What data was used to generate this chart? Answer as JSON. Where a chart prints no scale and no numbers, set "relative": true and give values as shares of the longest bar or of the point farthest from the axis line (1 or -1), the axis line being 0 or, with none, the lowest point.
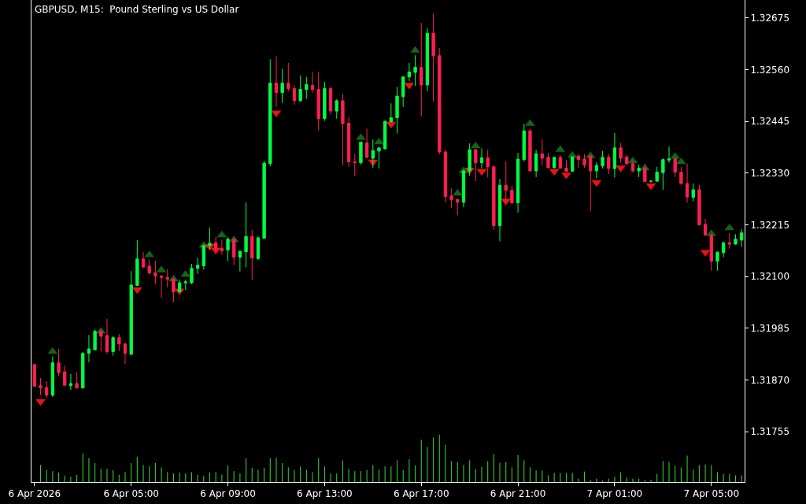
{
  "chart_data": [
    {
      "type": "candlestick",
      "title": "GBPUSD, M15:  Pound Sterling vs US Dollar",
      "categories": [
        "6 Apr 2026",
        null,
        null,
        null,
        null,
        null,
        null,
        null,
        null,
        null,
        null,
        null,
        null,
        null,
        null,
        null,
        "6 Apr 05:00",
        null,
        null,
        null,
        null,
        null,
        null,
        null,
        null,
        null,
        null,
        null,
        null,
        null,
        null,
        null,
        "6 Apr 09:00",
        null,
        null,
        null,
        null,
        null,
        null,
        null,
        null,
        null,
        null,
        null,
        null,
        null,
        null,
        null,
        "6 Apr 13:00",
        null,
        null,
        null,
        null,
        null,
        null,
        null,
        null,
        null,
        null,
        null,
        null,
        null,
        null,
        null,
        "6 Apr 17:00",
        null,
        null,
        null,
        null,
        null,
        null,
        null,
        null,
        null,
        null,
        null,
        null,
        null,
        null,
        null,
        "6 Apr 21:00",
        null,
        null,
        null,
        null,
        null,
        null,
        null,
        null,
        null,
        null,
        null,
        null,
        null,
        null,
        null,
        "7 Apr 01:00",
        null,
        null,
        null,
        null,
        null,
        null,
        null,
        null,
        null,
        null,
        null,
        null,
        null,
        null,
        null,
        "7 Apr 05:00",
        null,
        null,
        null,
        null,
        null
      ],
      "ohlc": [
        [
          1.31904,
          1.31906,
          1.31855,
          1.31856
        ],
        [
          1.31857,
          1.31874,
          1.31836,
          1.31852
        ],
        [
          1.31853,
          1.31867,
          1.31831,
          1.31836
        ],
        [
          1.31836,
          1.31922,
          1.31832,
          1.31908
        ],
        [
          1.31908,
          1.31939,
          1.31878,
          1.31886
        ],
        [
          1.31888,
          1.31902,
          1.31857,
          1.31858
        ],
        [
          1.31857,
          1.31883,
          1.31848,
          1.31862
        ],
        [
          1.31862,
          1.31888,
          1.31851,
          1.31852
        ],
        [
          1.31852,
          1.31932,
          1.31851,
          1.31929
        ],
        [
          1.31929,
          1.3197,
          1.31909,
          1.31939
        ],
        [
          1.31937,
          1.31982,
          1.31936,
          1.31978
        ],
        [
          1.31978,
          1.31979,
          1.31933,
          1.31967
        ],
        [
          1.31969,
          1.32006,
          1.31928,
          1.31933
        ],
        [
          1.31933,
          1.31967,
          1.31924,
          1.31964
        ],
        [
          1.31964,
          1.31972,
          1.31934,
          1.3195
        ],
        [
          1.3195,
          1.31953,
          1.31905,
          1.31929
        ],
        [
          1.31927,
          1.32112,
          1.31925,
          1.32081
        ],
        [
          1.3208,
          1.32181,
          1.32079,
          1.32139
        ],
        [
          1.32139,
          1.32154,
          1.32119,
          1.32121
        ],
        [
          1.32123,
          1.32138,
          1.32104,
          1.32108
        ],
        [
          1.32108,
          1.32135,
          1.32083,
          1.32101
        ],
        [
          1.32101,
          1.32103,
          1.32052,
          1.32098
        ],
        [
          1.32098,
          1.32116,
          1.32076,
          1.32094
        ],
        [
          1.32094,
          1.32096,
          1.32043,
          1.32066
        ],
        [
          1.32066,
          1.32093,
          1.32065,
          1.32086
        ],
        [
          1.32086,
          1.32093,
          1.3207,
          1.32088
        ],
        [
          1.32086,
          1.32128,
          1.32083,
          1.32118
        ],
        [
          1.32118,
          1.32142,
          1.32106,
          1.32125
        ],
        [
          1.32124,
          1.3217,
          1.32115,
          1.32169
        ],
        [
          1.32169,
          1.32209,
          1.32161,
          1.32174
        ],
        [
          1.32175,
          1.32188,
          1.3216,
          1.32161
        ],
        [
          1.32163,
          1.32182,
          1.32149,
          1.32157
        ],
        [
          1.32159,
          1.32188,
          1.32134,
          1.32183
        ],
        [
          1.32183,
          1.32184,
          1.32125,
          1.32143
        ],
        [
          1.32143,
          1.32158,
          1.32111,
          1.32156
        ],
        [
          1.32155,
          1.32265,
          1.32121,
          1.32189
        ],
        [
          1.32189,
          1.32204,
          1.32092,
          1.32141
        ],
        [
          1.3214,
          1.3219,
          1.32137,
          1.32186
        ],
        [
          1.32185,
          1.32357,
          1.32184,
          1.32352
        ],
        [
          1.32351,
          1.32583,
          1.32345,
          1.3253
        ],
        [
          1.3253,
          1.3259,
          1.32477,
          1.32509
        ],
        [
          1.32509,
          1.32562,
          1.32486,
          1.3253
        ],
        [
          1.3253,
          1.32575,
          1.32512,
          1.32518
        ],
        [
          1.32518,
          1.32525,
          1.32482,
          1.32491
        ],
        [
          1.32491,
          1.32547,
          1.32489,
          1.32516
        ],
        [
          1.32516,
          1.32544,
          1.32495,
          1.32527
        ],
        [
          1.32525,
          1.32555,
          1.32509,
          1.32516
        ],
        [
          1.32516,
          1.32555,
          1.32425,
          1.32451
        ],
        [
          1.32451,
          1.32533,
          1.32446,
          1.32518
        ],
        [
          1.32518,
          1.32523,
          1.3246,
          1.32468
        ],
        [
          1.32468,
          1.32494,
          1.32451,
          1.32491
        ],
        [
          1.32491,
          1.32506,
          1.32348,
          1.3244
        ],
        [
          1.32441,
          1.32455,
          1.32344,
          1.32355
        ],
        [
          1.32355,
          1.32373,
          1.32324,
          1.32353
        ],
        [
          1.32353,
          1.324,
          1.32349,
          1.32399
        ],
        [
          1.32397,
          1.32429,
          1.32363,
          1.32365
        ],
        [
          1.32363,
          1.32405,
          1.32341,
          1.3238
        ],
        [
          1.32379,
          1.32388,
          1.3234,
          1.32386
        ],
        [
          1.32384,
          1.32448,
          1.32382,
          1.32445
        ],
        [
          1.32444,
          1.32485,
          1.32443,
          1.32453
        ],
        [
          1.32453,
          1.32522,
          1.32418,
          1.32501
        ],
        [
          1.325,
          1.32544,
          1.32477,
          1.32544
        ],
        [
          1.32544,
          1.32575,
          1.32535,
          1.32555
        ],
        [
          1.32554,
          1.32592,
          1.32524,
          1.32565
        ],
        [
          1.32565,
          1.32664,
          1.32456,
          1.32526
        ],
        [
          1.32526,
          1.32652,
          1.32512,
          1.32641
        ],
        [
          1.32641,
          1.32685,
          1.32489,
          1.32591
        ],
        [
          1.32591,
          1.32608,
          1.32372,
          1.32377
        ],
        [
          1.32377,
          1.32382,
          1.32265,
          1.32278
        ],
        [
          1.32279,
          1.32296,
          1.32253,
          1.32271
        ],
        [
          1.32271,
          1.32274,
          1.32236,
          1.32265
        ],
        [
          1.32265,
          1.32337,
          1.32254,
          1.32335
        ],
        [
          1.32335,
          1.32396,
          1.32324,
          1.32382
        ],
        [
          1.32382,
          1.32384,
          1.32312,
          1.32353
        ],
        [
          1.32353,
          1.32385,
          1.3234,
          1.32364
        ],
        [
          1.32364,
          1.32382,
          1.3232,
          1.32344
        ],
        [
          1.32344,
          1.32347,
          1.32204,
          1.32213
        ],
        [
          1.32213,
          1.32317,
          1.32178,
          1.32303
        ],
        [
          1.32303,
          1.32356,
          1.32265,
          1.32292
        ],
        [
          1.32292,
          1.32302,
          1.32261,
          1.32264
        ],
        [
          1.32264,
          1.32375,
          1.32242,
          1.32361
        ],
        [
          1.3236,
          1.3244,
          1.32356,
          1.32424
        ],
        [
          1.32424,
          1.32429,
          1.32334,
          1.32335
        ],
        [
          1.32335,
          1.32382,
          1.32321,
          1.32373
        ],
        [
          1.32373,
          1.32405,
          1.32347,
          1.32363
        ],
        [
          1.32365,
          1.32375,
          1.32341,
          1.32342
        ],
        [
          1.32342,
          1.32366,
          1.3234,
          1.32365
        ],
        [
          1.32365,
          1.3237,
          1.3234,
          1.32341
        ],
        [
          1.32341,
          1.32359,
          1.32332,
          1.32334
        ],
        [
          1.32334,
          1.32367,
          1.32333,
          1.32366
        ],
        [
          1.32368,
          1.32372,
          1.32342,
          1.3236
        ],
        [
          1.32361,
          1.32372,
          1.32342,
          1.32348
        ],
        [
          1.32368,
          1.32369,
          1.32245,
          1.32335
        ],
        [
          1.32335,
          1.32354,
          1.32319,
          1.32347
        ],
        [
          1.32346,
          1.32379,
          1.3234,
          1.32365
        ],
        [
          1.32365,
          1.32373,
          1.32328,
          1.3234
        ],
        [
          1.3234,
          1.32419,
          1.3232,
          1.32386
        ],
        [
          1.32386,
          1.32397,
          1.32353,
          1.32363
        ],
        [
          1.32366,
          1.3237,
          1.32347,
          1.32351
        ],
        [
          1.32351,
          1.32357,
          1.32331,
          1.32335
        ],
        [
          1.32335,
          1.32349,
          1.32321,
          1.32341
        ],
        [
          1.32341,
          1.3235,
          1.3231,
          1.32311
        ],
        [
          1.32312,
          1.32313,
          1.32309,
          1.32312
        ],
        [
          1.32312,
          1.32344,
          1.32311,
          1.32332
        ],
        [
          1.32331,
          1.32362,
          1.32293,
          1.3236
        ],
        [
          1.32359,
          1.32389,
          1.32353,
          1.32362
        ],
        [
          1.32362,
          1.32364,
          1.32321,
          1.32332
        ],
        [
          1.32332,
          1.32344,
          1.32304,
          1.32307
        ],
        [
          1.32307,
          1.32351,
          1.32264,
          1.32277
        ],
        [
          1.32276,
          1.32307,
          1.32267,
          1.32293
        ],
        [
          1.32293,
          1.32304,
          1.32214,
          1.32215
        ],
        [
          1.32216,
          1.32228,
          1.32191,
          1.32192
        ],
        [
          1.32192,
          1.32193,
          1.32113,
          1.32134
        ],
        [
          1.32134,
          1.32156,
          1.32113,
          1.32154
        ],
        [
          1.32153,
          1.32178,
          1.32143,
          1.32175
        ],
        [
          1.32175,
          1.32197,
          1.32162,
          1.32172
        ],
        [
          1.32172,
          1.32194,
          1.32171,
          1.32183
        ],
        [
          1.32181,
          1.32205,
          1.32166,
          1.32197
        ]
      ],
      "colors": [
        "#ff1f52",
        "#ff1f52",
        "#ff1f52",
        "#00ff40",
        "#ff1f52",
        "#ff1f52",
        "#00ff40",
        "#ff1f52",
        "#00ff40",
        "#00ff40",
        "#00ff40",
        "#ff1f52",
        "#ff1f52",
        "#00ff40",
        "#ff1f52",
        "#ff1f52",
        "#00ff40",
        "#00ff40",
        "#ff1f52",
        "#ff1f52",
        "#ff1f52",
        "#ff1f52",
        "#ff1f52",
        "#ff1f52",
        "#00ff40",
        "#00ff40",
        "#00ff40",
        "#00ff40",
        "#00ff40",
        "#00ff40",
        "#ff1f52",
        "#ff1f52",
        "#00ff40",
        "#ff1f52",
        "#00ff40",
        "#00ff40",
        "#ff1f52",
        "#00ff40",
        "#00ff40",
        "#00ff40",
        "#ff1f52",
        "#00ff40",
        "#ff1f52",
        "#ff1f52",
        "#00ff40",
        "#00ff40",
        "#ff1f52",
        "#ff1f52",
        "#00ff40",
        "#ff1f52",
        "#00ff40",
        "#ff1f52",
        "#ff1f52",
        "#ff1f52",
        "#00ff40",
        "#ff1f52",
        "#00ff40",
        "#00ff40",
        "#00ff40",
        "#00ff40",
        "#00ff40",
        "#00ff40",
        "#00ff40",
        "#00ff40",
        "#ff1f52",
        "#00ff40",
        "#ff1f52",
        "#ff1f52",
        "#ff1f52",
        "#ff1f52",
        "#ff1f52",
        "#00ff40",
        "#00ff40",
        "#ff1f52",
        "#00ff40",
        "#ff1f52",
        "#ff1f52",
        "#00ff40",
        "#ff1f52",
        "#ff1f52",
        "#00ff40",
        "#00ff40",
        "#ff1f52",
        "#00ff40",
        "#ff1f52",
        "#ff1f52",
        "#00ff40",
        "#ff1f52",
        "#ff1f52",
        "#00ff40",
        "#ff1f52",
        "#ff1f52",
        "#ff1f52",
        "#00ff40",
        "#00ff40",
        "#ff1f52",
        "#00ff40",
        "#ff1f52",
        "#ff1f52",
        "#ff1f52",
        "#00ff40",
        "#ff1f52",
        "#00ff40",
        "#00ff40",
        "#00ff40",
        "#00ff40",
        "#ff1f52",
        "#ff1f52",
        "#ff1f52",
        "#00ff40",
        "#ff1f52",
        "#ff1f52",
        "#ff1f52",
        "#00ff40",
        "#00ff40",
        "#ff1f52",
        "#00ff40",
        "#00ff40"
      ],
      "ylim": [
        1.31643,
        1.32715
      ],
      "yticks": [
        1.31755,
        {
          "value": 1.3187,
          "label": "1.31870"
        },
        1.31985,
        {
          "value": 1.321,
          "label": "1.32100"
        },
        1.32215,
        {
          "value": 1.3233,
          "label": "1.32330"
        },
        1.32445,
        {
          "value": 1.3256,
          "label": "1.32560"
        },
        1.32675
      ],
      "series": [
        {
          "type": "scatter",
          "color": "#146414",
          "marker": "triangle",
          "values": [
            null,
            null,
            null,
            1.31933,
            null,
            null,
            null,
            null,
            null,
            null,
            null,
            1.31978,
            null,
            null,
            null,
            null,
            null,
            null,
            null,
            1.32148,
            null,
            1.32114,
            null,
            1.32094,
            null,
            1.32104,
            null,
            null,
            1.32169,
            null,
            null,
            1.32192,
            null,
            1.32181,
            null,
            null,
            null,
            null,
            null,
            null,
            null,
            null,
            null,
            null,
            null,
            null,
            null,
            null,
            null,
            null,
            null,
            null,
            null,
            null,
            1.32409,
            null,
            null,
            1.32399,
            null,
            null,
            null,
            null,
            null,
            1.32603,
            null,
            null,
            null,
            null,
            null,
            null,
            1.32285,
            1.32335,
            null,
            1.3239,
            null,
            null,
            null,
            null,
            null,
            null,
            null,
            null,
            1.3244,
            null,
            null,
            null,
            null,
            1.32382,
            null,
            1.32369,
            null,
            null,
            1.32368,
            null,
            null,
            null,
            null,
            null,
            null,
            1.32357,
            null,
            1.32341,
            null,
            null,
            null,
            null,
            1.32367,
            1.32355,
            null,
            null,
            null,
            null,
            1.32195,
            null,
            null,
            1.32208,
            null,
            null
          ]
        },
        {
          "type": "scatter",
          "color": "#ee1111",
          "marker": "triangle",
          "values": [
            null,
            1.31822,
            null,
            null,
            null,
            null,
            null,
            null,
            null,
            null,
            null,
            null,
            null,
            null,
            null,
            null,
            null,
            1.32071,
            null,
            null,
            null,
            null,
            null,
            null,
            1.32068,
            null,
            null,
            null,
            null,
            1.32167,
            1.32159,
            null,
            null,
            null,
            null,
            null,
            null,
            null,
            null,
            null,
            1.32464,
            null,
            null,
            null,
            null,
            null,
            null,
            null,
            null,
            null,
            null,
            null,
            null,
            null,
            null,
            null,
            1.32355,
            null,
            null,
            1.32439,
            null,
            null,
            1.32526,
            null,
            null,
            null,
            null,
            null,
            null,
            null,
            null,
            null,
            1.32337,
            null,
            1.32334,
            null,
            null,
            null,
            1.32268,
            null,
            null,
            null,
            null,
            null,
            null,
            null,
            1.32334,
            null,
            1.32326,
            null,
            null,
            null,
            null,
            1.32309,
            null,
            null,
            null,
            1.32342,
            null,
            null,
            null,
            null,
            1.32302,
            null,
            null,
            null,
            null,
            null,
            null,
            null,
            null,
            1.32154,
            null,
            null,
            null,
            null,
            null,
            null
          ]
        }
      ]
    },
    {
      "type": "bar",
      "relative": true,
      "color": "#32cd32",
      "categories": [
        null,
        null,
        null,
        null,
        null,
        null,
        null,
        null,
        null,
        null,
        null,
        null,
        null,
        null,
        null,
        null,
        null,
        null,
        null,
        null,
        null,
        null,
        null,
        null,
        null,
        null,
        null,
        null,
        null,
        null,
        null,
        null,
        null,
        null,
        null,
        null,
        null,
        null,
        null,
        null,
        null,
        null,
        null,
        null,
        null,
        null,
        null,
        null,
        null,
        null,
        null,
        null,
        null,
        null,
        null,
        null,
        null,
        null,
        null,
        null,
        null,
        null,
        null,
        null,
        null,
        null,
        null,
        null,
        null,
        null,
        null,
        null,
        null,
        null,
        null,
        null,
        null,
        null,
        null,
        null,
        null,
        null,
        null,
        null,
        null,
        null,
        null,
        null,
        null,
        null,
        null,
        null,
        null,
        null,
        null,
        null,
        null,
        null,
        null,
        null,
        null,
        null,
        null,
        null,
        null,
        null,
        null,
        null,
        null,
        null,
        null,
        null,
        null,
        null,
        null,
        null,
        null,
        null
      ],
      "values": [
        null,
        0.36,
        0.26,
        0.23,
        0.2,
        0.13,
        0.11,
        0.15,
        0.6,
        0.5,
        0.4,
        0.28,
        0.28,
        0.25,
        0.15,
        0.21,
        0.4,
        0.53,
        0.36,
        0.33,
        0.4,
        0.31,
        0.21,
        0.18,
        0.2,
        0.18,
        0.21,
        0.15,
        0.13,
        0.2,
        0.21,
        0.16,
        0.35,
        0.23,
        0.18,
        0.5,
        0.3,
        0.26,
        0.3,
        0.5,
        0.51,
        0.4,
        0.31,
        0.25,
        0.33,
        0.26,
        0.21,
        0.5,
        0.33,
        0.18,
        0.18,
        0.46,
        0.28,
        0.23,
        0.23,
        0.25,
        0.36,
        0.26,
        0.33,
        0.33,
        0.46,
        0.25,
        0.48,
        0.35,
        0.89,
        0.74,
        0.94,
        1,
        0.79,
        0.44,
        0.42,
        0.36,
        0.46,
        0.27,
        0.32,
        0.44,
        0.59,
        0.41,
        0.42,
        0.31,
        0.57,
        0.46,
        0.31,
        0.24,
        0.24,
        0.14,
        0.19,
        0.19,
        0.19,
        0.19,
        0.07,
        0.22,
        0.04,
        0.07,
        0.03,
        0.07,
        0.11,
        0.21,
        0.09,
        0.07,
        0.07,
        0.04,
        0.04,
        0.17,
        0.44,
        0.42,
        0.34,
        0.31,
        0.56,
        0.26,
        0.36,
        0.37,
        0.36,
        0.21,
        0.17,
        0.17,
        0.14,
        0.14
      ]
    }
  ]
}
